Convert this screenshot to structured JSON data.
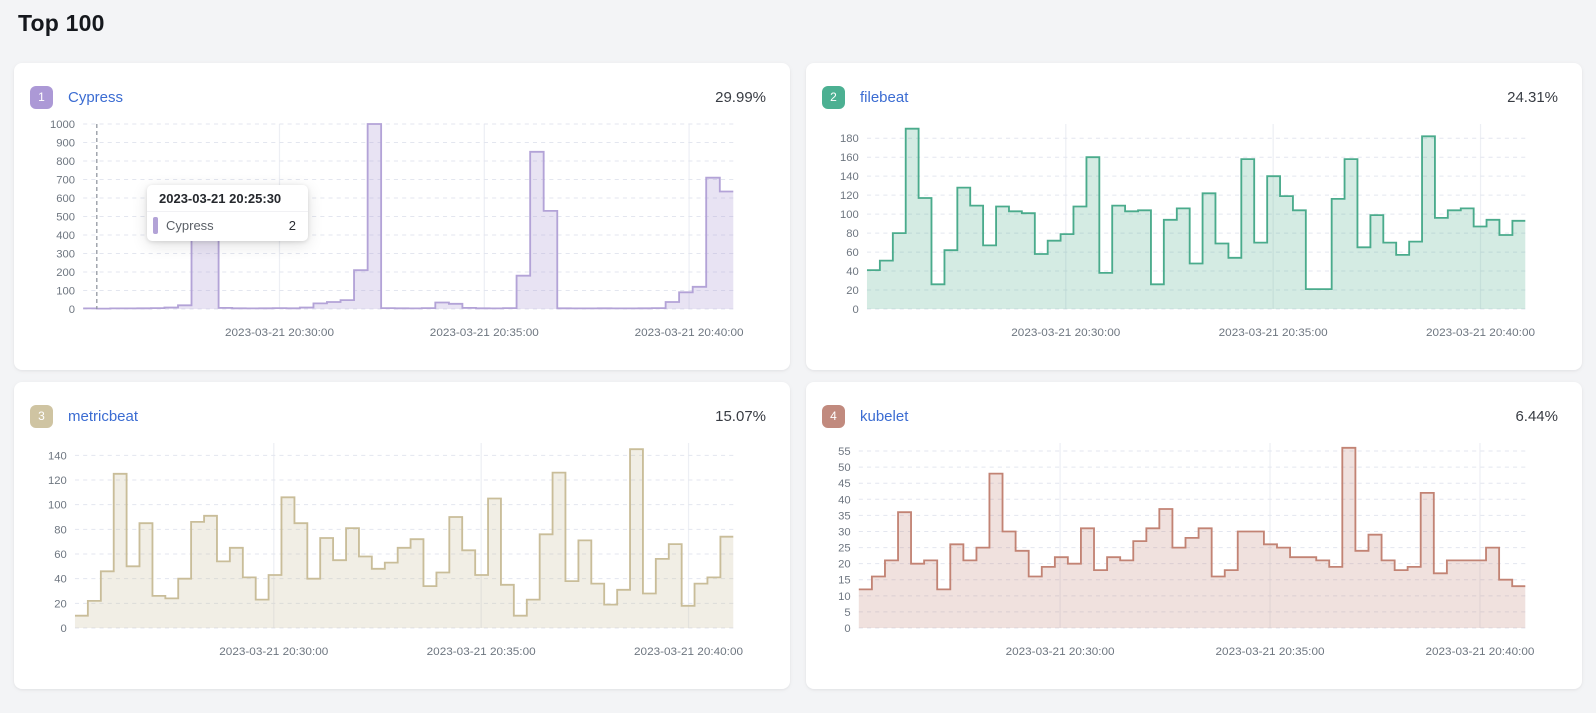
{
  "page": {
    "title": "Top 100",
    "background": "#f3f4f6"
  },
  "tooltip": {
    "title": "2023-03-21 20:25:30",
    "series_label": "Cypress",
    "value": "2",
    "marker_color": "#b3a3d7"
  },
  "chart_data": [
    {
      "type": "area-step",
      "rank": "1",
      "name": "Cypress",
      "percent": "29.99%",
      "badge_color": "#ac99d6",
      "line_color": "#b3a3d7",
      "fill_color": "rgba(179,163,215,0.30)",
      "y_ticks": [
        0,
        100,
        200,
        300,
        400,
        500,
        600,
        700,
        800,
        900,
        1000
      ],
      "y_plot_max": 1000,
      "x_ticks": [
        "2023-03-21 20:30:00",
        "2023-03-21 20:35:00",
        "2023-03-21 20:40:00"
      ],
      "x_start": "2023-03-21 20:25:10",
      "x_step_seconds": 20,
      "values": [
        3,
        2,
        3,
        3,
        4,
        5,
        8,
        20,
        500,
        480,
        6,
        4,
        3,
        4,
        5,
        4,
        8,
        30,
        38,
        48,
        210,
        1000,
        5,
        4,
        3,
        5,
        35,
        28,
        6,
        4,
        3,
        5,
        180,
        850,
        530,
        4,
        3,
        3,
        4,
        3,
        3,
        4,
        5,
        38,
        90,
        120,
        710,
        635
      ],
      "cursor_fraction": 0.021,
      "has_tooltip": true
    },
    {
      "type": "area-step",
      "rank": "2",
      "name": "filebeat",
      "percent": "24.31%",
      "badge_color": "#4cb092",
      "line_color": "#4aab8c",
      "fill_color": "rgba(74,171,140,0.24)",
      "y_ticks": [
        0,
        20,
        40,
        60,
        80,
        100,
        120,
        140,
        160,
        180
      ],
      "y_plot_max": 195,
      "x_ticks": [
        "2023-03-21 20:30:00",
        "2023-03-21 20:35:00",
        "2023-03-21 20:40:00"
      ],
      "values": [
        41,
        51,
        80,
        190,
        117,
        26,
        62,
        128,
        109,
        67,
        108,
        103,
        101,
        58,
        72,
        79,
        108,
        160,
        38,
        109,
        103,
        104,
        26,
        94,
        106,
        48,
        122,
        69,
        54,
        158,
        70,
        140,
        119,
        104,
        21,
        21,
        116,
        158,
        65,
        99,
        70,
        57,
        71,
        182,
        96,
        104,
        106,
        87,
        94,
        78,
        93
      ]
    },
    {
      "type": "area-step",
      "rank": "3",
      "name": "metricbeat",
      "percent": "15.07%",
      "badge_color": "#cfc4a2",
      "line_color": "#c9bd99",
      "fill_color": "rgba(201,189,153,0.26)",
      "y_ticks": [
        0,
        20,
        40,
        60,
        80,
        100,
        120,
        140
      ],
      "y_plot_max": 150,
      "x_ticks": [
        "2023-03-21 20:30:00",
        "2023-03-21 20:35:00",
        "2023-03-21 20:40:00"
      ],
      "values": [
        10,
        22,
        46,
        125,
        50,
        85,
        26,
        24,
        40,
        86,
        91,
        54,
        65,
        41,
        23,
        43,
        106,
        85,
        40,
        73,
        55,
        81,
        58,
        48,
        53,
        65,
        72,
        34,
        45,
        90,
        63,
        43,
        105,
        35,
        10,
        23,
        76,
        126,
        38,
        71,
        36,
        19,
        31,
        145,
        28,
        56,
        68,
        18,
        36,
        41,
        74
      ]
    },
    {
      "type": "area-step",
      "rank": "4",
      "name": "kubelet",
      "percent": "6.44%",
      "badge_color": "#c18a7e",
      "line_color": "#c28374",
      "fill_color": "rgba(194,131,116,0.24)",
      "y_ticks": [
        0,
        5,
        10,
        15,
        20,
        25,
        30,
        35,
        40,
        45,
        50,
        55
      ],
      "y_plot_max": 57.5,
      "x_ticks": [
        "2023-03-21 20:30:00",
        "2023-03-21 20:35:00",
        "2023-03-21 20:40:00"
      ],
      "values": [
        12,
        16,
        21,
        36,
        20,
        21,
        12,
        26,
        21,
        25,
        48,
        30,
        24,
        16,
        19,
        22,
        20,
        31,
        18,
        22,
        21,
        27,
        31,
        37,
        25,
        28,
        31,
        16,
        18,
        30,
        30,
        26,
        25,
        22,
        22,
        21,
        19,
        56,
        24,
        29,
        21,
        18,
        19,
        42,
        17,
        21,
        21,
        21,
        25,
        15,
        13
      ]
    }
  ]
}
